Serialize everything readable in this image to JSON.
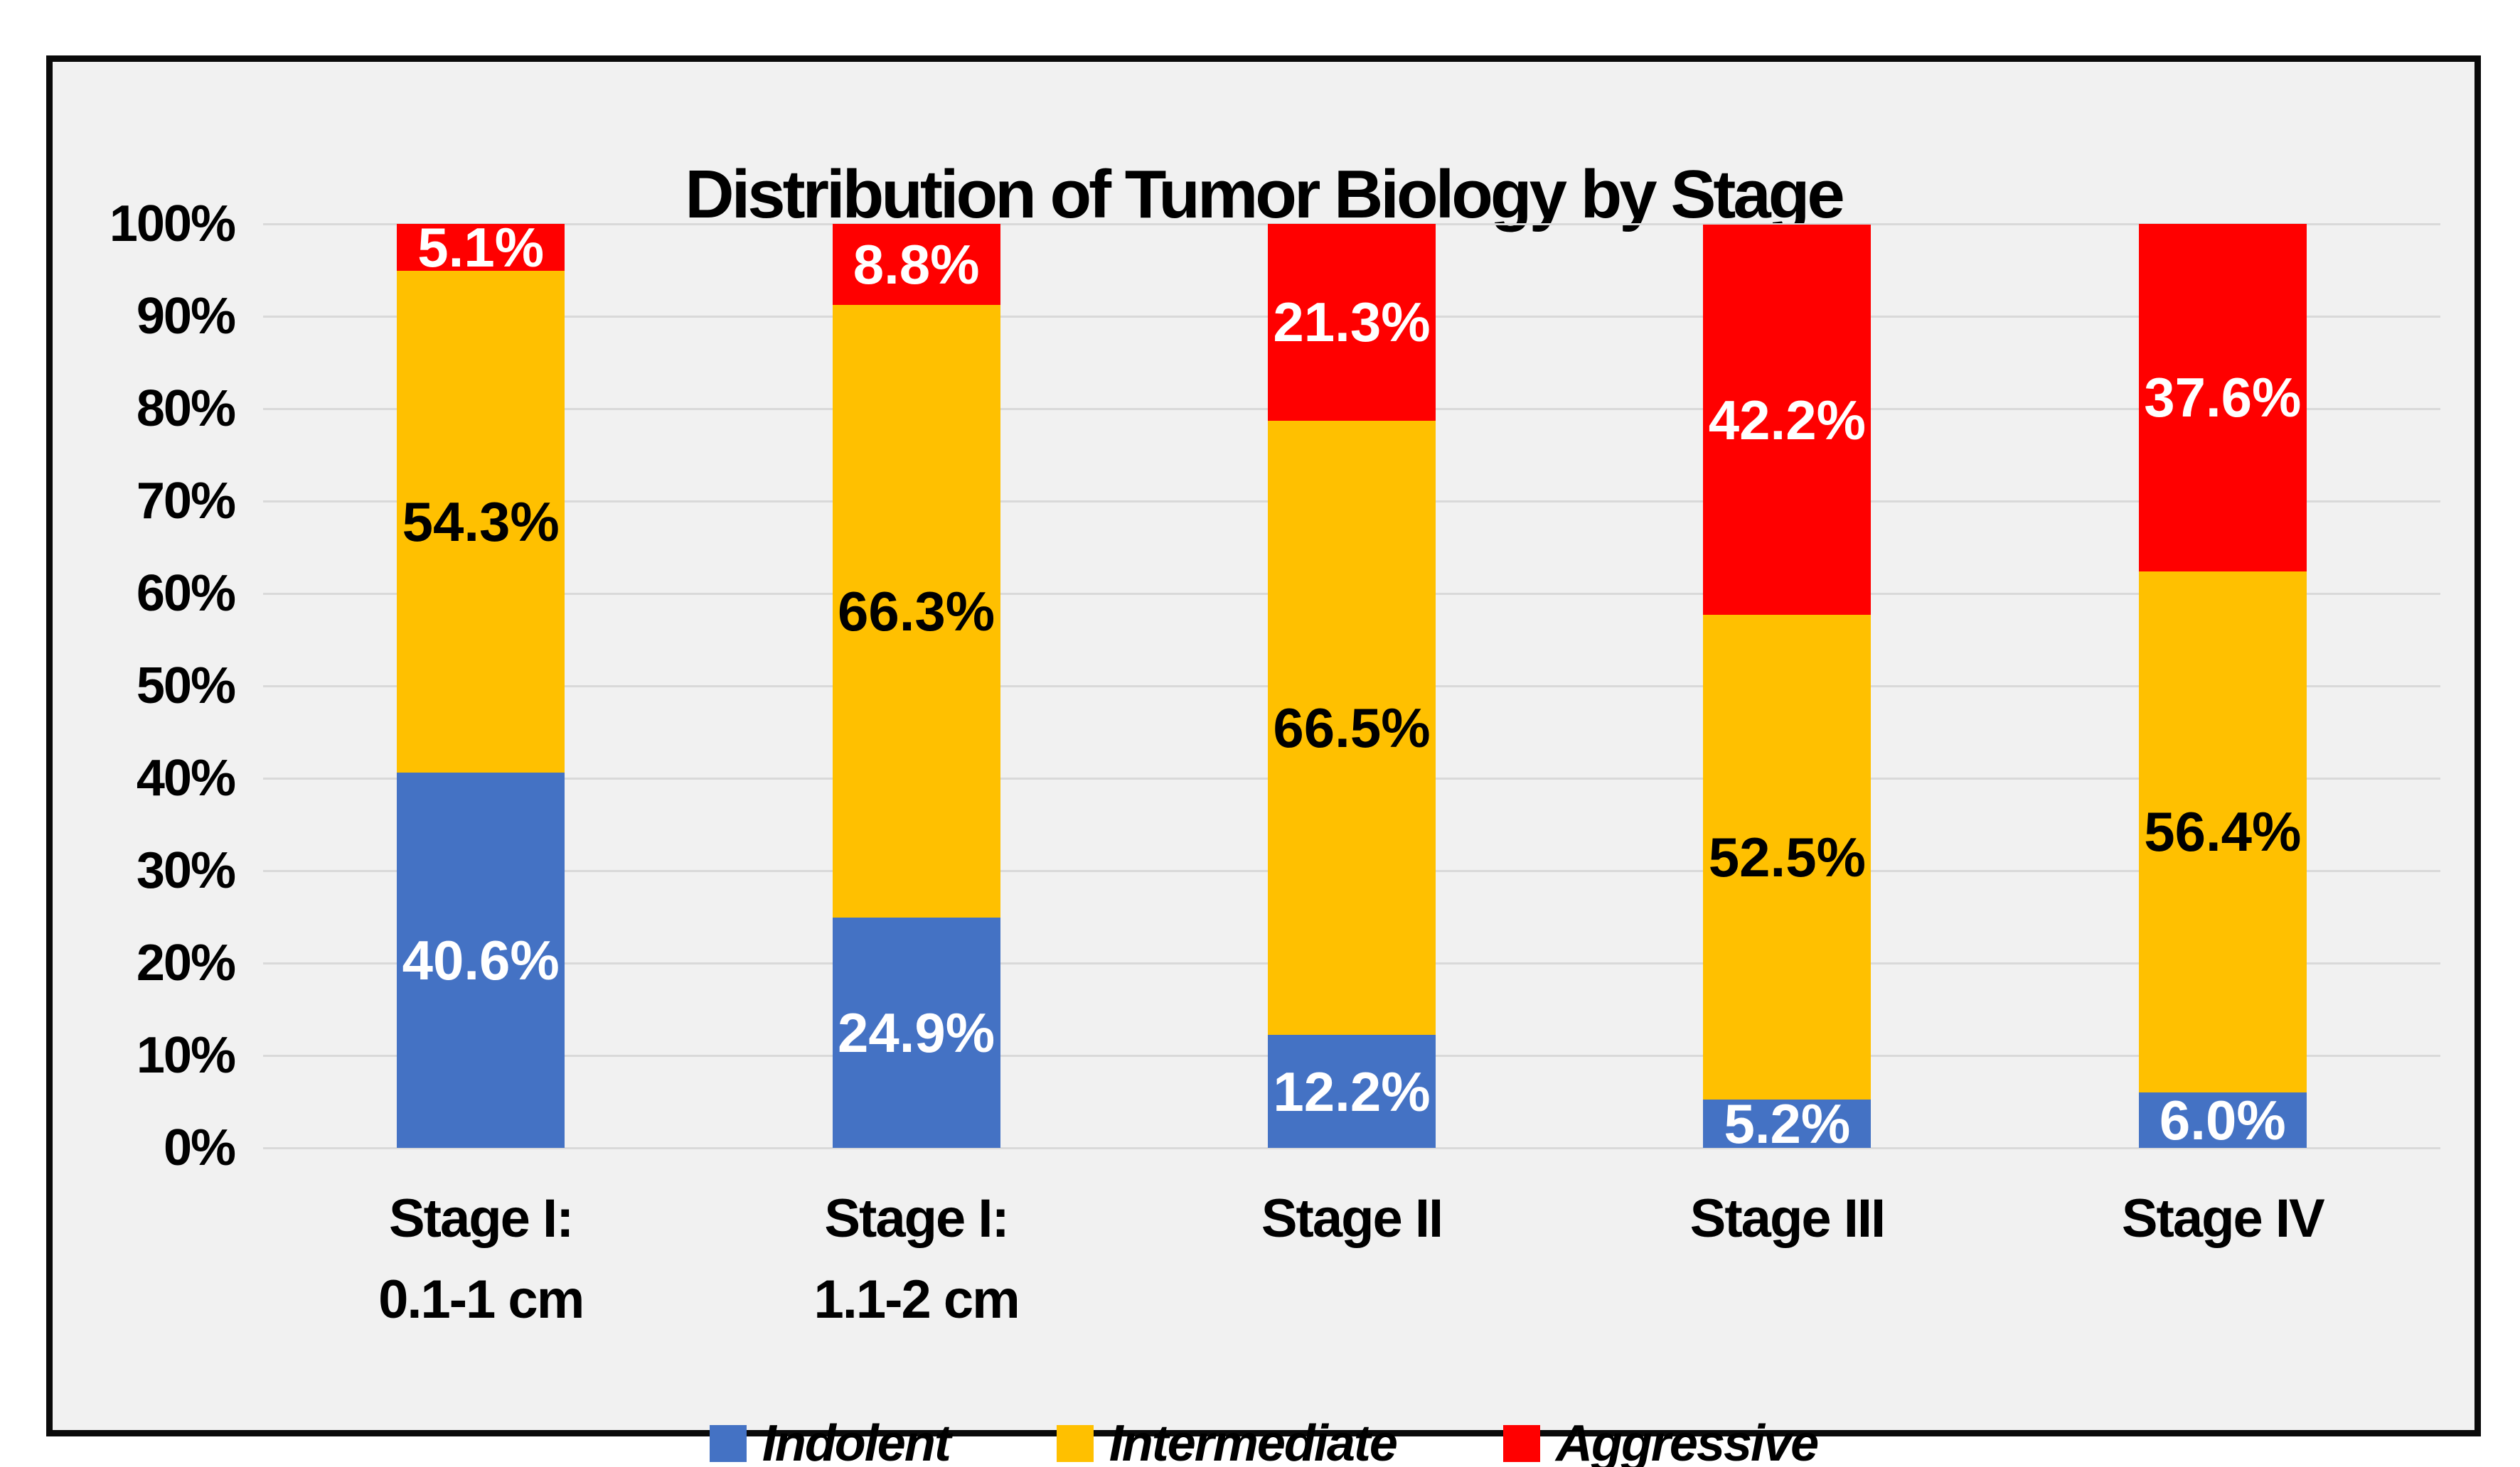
{
  "chart_data": {
    "type": "bar",
    "stacked_percent": true,
    "title": "Distribution of Tumor Biology by Stage",
    "categories": [
      [
        "Stage I:",
        "0.1-1 cm"
      ],
      [
        "Stage I:",
        "1.1-2 cm"
      ],
      [
        "Stage II"
      ],
      [
        "Stage III"
      ],
      [
        "Stage IV"
      ]
    ],
    "series": [
      {
        "name": "Indolent",
        "color": "#4472C4",
        "label_color": "#FFFFFF",
        "values": [
          40.6,
          24.9,
          12.2,
          5.2,
          6.0
        ]
      },
      {
        "name": "Intermediate",
        "color": "#FFC000",
        "label_color": "#000000",
        "values": [
          54.3,
          66.3,
          66.5,
          52.5,
          56.4
        ]
      },
      {
        "name": "Aggressive",
        "color": "#FF0000",
        "label_color": "#FFFFFF",
        "values": [
          5.1,
          8.8,
          21.3,
          42.2,
          37.6
        ]
      }
    ],
    "value_suffix": "%",
    "yticks": [
      "0%",
      "10%",
      "20%",
      "30%",
      "40%",
      "50%",
      "60%",
      "70%",
      "80%",
      "90%",
      "100%"
    ],
    "ylim": [
      0,
      100
    ],
    "grid": true,
    "legend_position": "bottom",
    "colors": {
      "panel_background": "#F1F1F1",
      "frame_border": "#0A0A0A",
      "gridline": "#D9D9D9"
    }
  }
}
